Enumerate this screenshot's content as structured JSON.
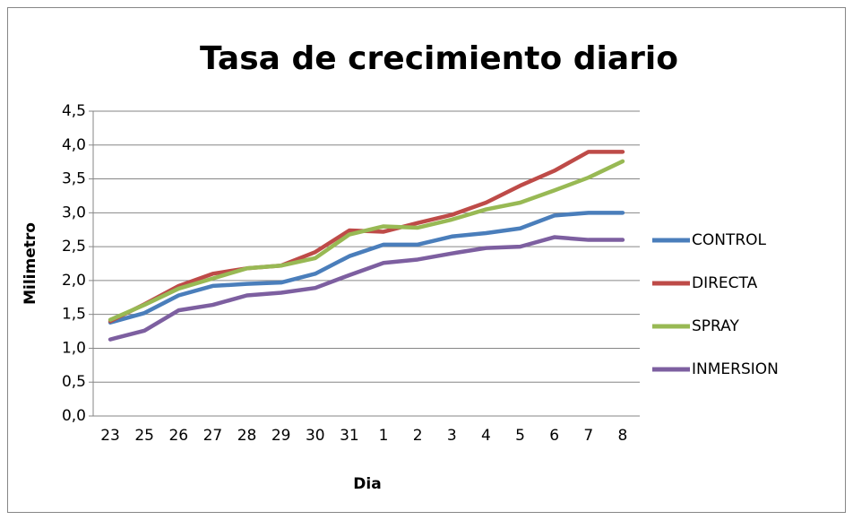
{
  "chart_data": {
    "type": "line",
    "title": "Tasa de crecimiento diario",
    "x_label": "Dia",
    "y_label": "Milimetro",
    "categories": [
      "23",
      "25",
      "26",
      "27",
      "28",
      "29",
      "30",
      "31",
      "1",
      "2",
      "3",
      "4",
      "5",
      "6",
      "7",
      "8"
    ],
    "series": [
      {
        "name": "CONTROL",
        "color": "#4a7ebb",
        "values": [
          1.38,
          1.52,
          1.78,
          1.92,
          1.95,
          1.97,
          2.1,
          2.36,
          2.53,
          2.53,
          2.65,
          2.7,
          2.77,
          2.96,
          3.0,
          3.0
        ]
      },
      {
        "name": "DIRECTA",
        "color": "#be4b48",
        "values": [
          1.4,
          1.65,
          1.92,
          2.1,
          2.18,
          2.22,
          2.42,
          2.74,
          2.72,
          2.85,
          2.97,
          3.15,
          3.4,
          3.62,
          3.9,
          3.9
        ]
      },
      {
        "name": "SPRAY",
        "color": "#98b954",
        "values": [
          1.42,
          1.64,
          1.88,
          2.03,
          2.18,
          2.22,
          2.33,
          2.68,
          2.8,
          2.78,
          2.9,
          3.05,
          3.15,
          3.33,
          3.52,
          3.76
        ]
      },
      {
        "name": "INMERSION",
        "color": "#7d5fa0",
        "values": [
          1.13,
          1.26,
          1.56,
          1.64,
          1.78,
          1.82,
          1.89,
          2.08,
          2.26,
          2.31,
          2.4,
          2.48,
          2.5,
          2.64,
          2.6,
          2.6
        ]
      }
    ],
    "ylim": [
      0,
      4.5
    ],
    "yticks": [
      {
        "value": 0,
        "label": "0,0"
      },
      {
        "value": 0.5,
        "label": "0,5"
      },
      {
        "value": 1,
        "label": "1,0"
      },
      {
        "value": 1.5,
        "label": "1,5"
      },
      {
        "value": 2,
        "label": "2,0"
      },
      {
        "value": 2.5,
        "label": "2,5"
      },
      {
        "value": 3,
        "label": "3,0"
      },
      {
        "value": 3.5,
        "label": "3,5"
      },
      {
        "value": 4,
        "label": "4,0"
      },
      {
        "value": 4.5,
        "label": "4,5"
      }
    ],
    "grid": true,
    "legend": "right"
  }
}
